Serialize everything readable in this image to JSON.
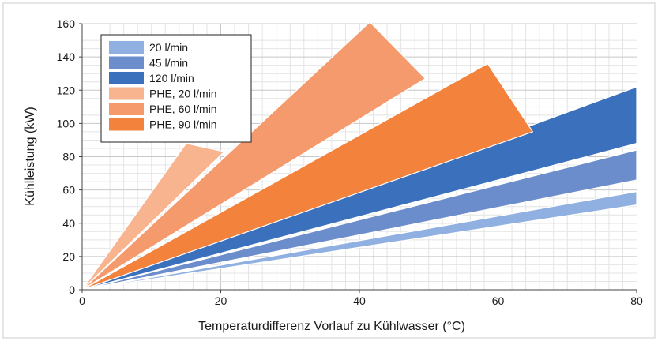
{
  "chart_data": {
    "type": "area",
    "xlabel": "Temperaturdifferenz Vorlauf zu Kühlwasser (°C)",
    "ylabel": "Kühlleistung (kW)",
    "xlim": [
      0,
      80
    ],
    "ylim": [
      0,
      160
    ],
    "x_ticks": [
      0,
      20,
      40,
      60,
      80
    ],
    "y_ticks": [
      0,
      20,
      40,
      60,
      80,
      100,
      120,
      140,
      160
    ],
    "grid": true,
    "legend_position": "top-left",
    "series": [
      {
        "name": "20 l/min",
        "color": "#8fb0e0",
        "lower": [
          [
            0,
            0
          ],
          [
            80,
            51
          ]
        ],
        "upper": [
          [
            0,
            0
          ],
          [
            80,
            59
          ]
        ]
      },
      {
        "name": "45 l/min",
        "color": "#6b8dcc",
        "lower": [
          [
            0,
            0
          ],
          [
            80,
            66
          ]
        ],
        "upper": [
          [
            0,
            0
          ],
          [
            80,
            84
          ]
        ]
      },
      {
        "name": "120 l/min",
        "color": "#3b70bd",
        "lower": [
          [
            0,
            0
          ],
          [
            80,
            88
          ]
        ],
        "upper": [
          [
            0,
            0
          ],
          [
            80,
            122
          ]
        ]
      },
      {
        "name": "PHE, 20 l/min",
        "color": "#f7b48f",
        "lower": [
          [
            0,
            0
          ],
          [
            20.5,
            83
          ]
        ],
        "upper": [
          [
            0,
            0
          ],
          [
            15,
            88
          ]
        ]
      },
      {
        "name": "PHE, 60 l/min",
        "color": "#f59a6c",
        "lower": [
          [
            0,
            0
          ],
          [
            49.5,
            127
          ]
        ],
        "upper": [
          [
            0,
            0
          ],
          [
            41.5,
            161
          ]
        ]
      },
      {
        "name": "PHE, 90 l/min",
        "color": "#f3823d",
        "lower": [
          [
            0,
            0
          ],
          [
            65,
            95
          ]
        ],
        "upper": [
          [
            0,
            0
          ],
          [
            58.5,
            136
          ]
        ]
      }
    ]
  }
}
